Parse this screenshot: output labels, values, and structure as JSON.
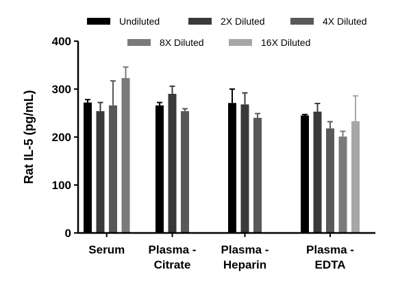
{
  "chart_data": {
    "type": "bar",
    "title": "",
    "xlabel": "",
    "ylabel": "Rat IL-5 (pg/mL)",
    "ylim": [
      0,
      400
    ],
    "yticks": [
      "0",
      "100",
      "200",
      "300",
      "400"
    ],
    "categories": [
      [
        "Serum"
      ],
      [
        "Plasma -",
        "Citrate"
      ],
      [
        "Plasma -",
        "Heparin"
      ],
      [
        "Plasma -",
        "EDTA"
      ]
    ],
    "series": [
      {
        "name": "Undiluted",
        "color": "#000000",
        "values": [
          272,
          266,
          271,
          245
        ],
        "errors": [
          6,
          6,
          29,
          2
        ]
      },
      {
        "name": "2X Diluted",
        "color": "#3a3a3a",
        "values": [
          254,
          290,
          268,
          253
        ],
        "errors": [
          18,
          16,
          24,
          17
        ]
      },
      {
        "name": "4X Diluted",
        "color": "#595959",
        "values": [
          266,
          254,
          240,
          218
        ],
        "errors": [
          51,
          5,
          9,
          14
        ]
      },
      {
        "name": "8X Diluted",
        "color": "#7a7a7a",
        "values": [
          323,
          null,
          null,
          201
        ],
        "errors": [
          23,
          null,
          null,
          11
        ]
      },
      {
        "name": "16X Diluted",
        "color": "#a6a6a6",
        "values": [
          null,
          null,
          null,
          233
        ],
        "errors": [
          null,
          null,
          null,
          53
        ]
      }
    ],
    "legend": "top"
  }
}
